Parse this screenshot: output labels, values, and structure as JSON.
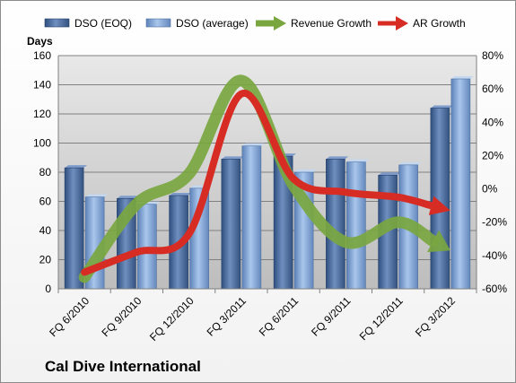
{
  "chart_data": {
    "type": "bar",
    "title": "",
    "company_label": "Cal Dive International",
    "ylabel": "Days",
    "y2label": "",
    "ylim": [
      0,
      160
    ],
    "yticks": [
      0,
      20,
      40,
      60,
      80,
      100,
      120,
      140,
      160
    ],
    "y2lim": [
      -60,
      80
    ],
    "y2ticks": [
      "-60%",
      "-40%",
      "-20%",
      "0%",
      "20%",
      "40%",
      "60%",
      "80%"
    ],
    "y2tick_values": [
      -60,
      -40,
      -20,
      0,
      20,
      40,
      60,
      80
    ],
    "grid": true,
    "legend_position": "top",
    "categories": [
      "FQ 6/2010",
      "FQ 9/2010",
      "FQ 12/2010",
      "FQ 3/2011",
      "FQ 6/2011",
      "FQ 9/2011",
      "FQ 12/2011",
      "FQ 3/2012"
    ],
    "series": [
      {
        "name": "DSO (EOQ)",
        "kind": "bar",
        "axis": "left",
        "color": "#4a6fa5",
        "values": [
          83,
          62,
          64,
          89,
          91,
          89,
          78,
          124
        ]
      },
      {
        "name": "DSO (average)",
        "kind": "bar",
        "axis": "left",
        "color": "#7ea3d6",
        "values": [
          63,
          58,
          69,
          98,
          80,
          87,
          85,
          144
        ]
      },
      {
        "name": "Revenue Growth",
        "kind": "arrow",
        "axis": "right",
        "unit": "%",
        "color": "#7aa640",
        "values": [
          -53,
          -9,
          9,
          65,
          2,
          -32,
          -20,
          -37
        ]
      },
      {
        "name": "AR Growth",
        "kind": "arrow",
        "axis": "right",
        "unit": "%",
        "color": "#d62c24",
        "values": [
          -50,
          -38,
          -27,
          57,
          6,
          -2,
          -5,
          -13
        ]
      }
    ]
  }
}
